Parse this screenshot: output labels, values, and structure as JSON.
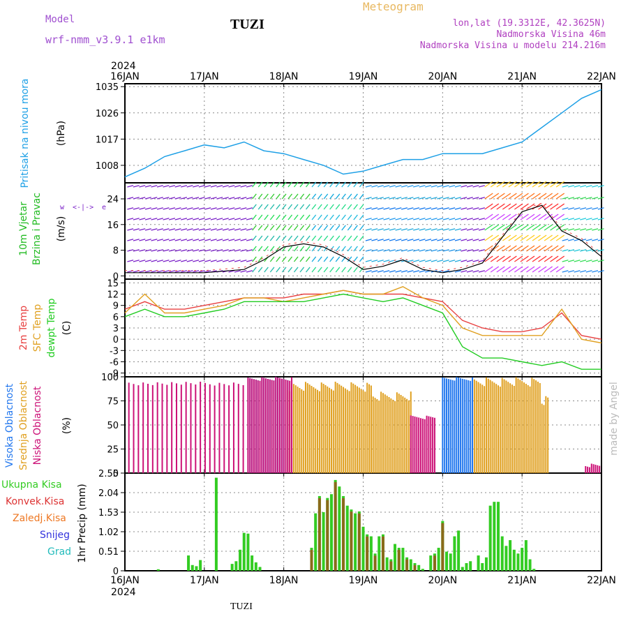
{
  "header": {
    "model_label": "Model",
    "model_name": "wrf-nmm_v3.9.1  e1km",
    "station": "TUZI",
    "title": "Meteogram",
    "lonlat": "lon,lat (19.3312E, 42.3625N)",
    "altitude": "Nadmorska Visina 46m",
    "model_altitude": "Nadmorska Visina u modelu 214.216m",
    "footer_station": "TUZI",
    "credit": "made by Angel"
  },
  "colors": {
    "pressure": "#1ea0e6",
    "wind_label": "#22bb22",
    "wind_arrows": "#7a1fc8",
    "temp2m": "#e84040",
    "sfc_temp": "#e0a020",
    "dewpoint": "#22cc22",
    "high_cloud": "#2277ee",
    "mid_cloud": "#e0a020",
    "low_cloud": "#cc1177",
    "total_precip": "#33cc22",
    "convective": "#dd3333",
    "frozen": "#ee7722",
    "snow": "#3333dd",
    "hail": "#22bbbb"
  },
  "time_axis": {
    "year": "2024",
    "ticks": [
      "16JAN",
      "17JAN",
      "18JAN",
      "19JAN",
      "20JAN",
      "21JAN",
      "22JAN"
    ]
  },
  "chart_data": [
    {
      "type": "line",
      "panel": "pressure",
      "ylabel": [
        "Pritisak na nivou mora",
        "(hPa)"
      ],
      "yticks": [
        1008,
        1017,
        1026,
        1035
      ],
      "ylim": [
        1002,
        1036
      ],
      "x_days": [
        0,
        0.25,
        0.5,
        0.75,
        1.0,
        1.25,
        1.5,
        1.75,
        2.0,
        2.25,
        2.5,
        2.75,
        3.0,
        3.25,
        3.5,
        3.75,
        4.0,
        4.25,
        4.5,
        4.75,
        5.0,
        5.25,
        5.5,
        5.75,
        6.0
      ],
      "values": [
        1004,
        1007,
        1011,
        1013,
        1015,
        1014,
        1016,
        1013,
        1012,
        1010,
        1008,
        1005,
        1006,
        1008,
        1010,
        1010,
        1012,
        1012,
        1012,
        1014,
        1016,
        1021,
        1026,
        1031,
        1034
      ]
    },
    {
      "type": "line",
      "panel": "wind",
      "ylabel": [
        "10m Vjetar",
        "Brzina i Pravac",
        "(m/s)"
      ],
      "yticks": [
        0,
        8,
        16,
        24
      ],
      "ylim": [
        -1,
        29
      ],
      "series": [
        {
          "x_days": [
            0,
            0.5,
            1.0,
            1.5,
            1.75,
            2.0,
            2.25,
            2.5,
            2.75,
            3.0,
            3.25,
            3.5,
            3.75,
            4.0,
            4.25,
            4.5,
            4.75,
            5.0,
            5.25,
            5.5,
            5.75,
            6.0
          ],
          "values": [
            1,
            1,
            1,
            2,
            5,
            9,
            10,
            9,
            6,
            2,
            3,
            5,
            2,
            1,
            2,
            4,
            12,
            20,
            22,
            14,
            11,
            6
          ]
        }
      ]
    },
    {
      "type": "line",
      "panel": "temperature",
      "ylabel": [
        "2m Temp",
        "SFC Temp",
        "dewpt Temp",
        "(C)"
      ],
      "yticks": [
        -9,
        -6,
        -3,
        0,
        3,
        6,
        9,
        12,
        15
      ],
      "ylim": [
        -10,
        16
      ],
      "x_days": [
        0,
        0.25,
        0.5,
        0.75,
        1.0,
        1.25,
        1.5,
        1.75,
        2.0,
        2.25,
        2.5,
        2.75,
        3.0,
        3.25,
        3.5,
        3.75,
        4.0,
        4.25,
        4.5,
        4.75,
        5.0,
        5.25,
        5.5,
        5.75,
        6.0
      ],
      "series": [
        {
          "name": "2m Temp",
          "values": [
            8,
            10,
            8,
            8,
            9,
            10,
            11,
            11,
            11,
            12,
            12,
            13,
            12,
            12,
            12,
            11,
            10,
            5,
            3,
            2,
            2,
            3,
            7,
            1,
            0
          ]
        },
        {
          "name": "SFC Temp",
          "values": [
            7,
            12,
            7,
            7,
            8,
            9,
            11,
            11,
            10,
            11,
            12,
            13,
            12,
            12,
            14,
            11,
            9,
            3,
            1,
            1,
            1,
            1,
            8,
            0,
            -1
          ]
        },
        {
          "name": "dewpt Temp",
          "values": [
            6,
            8,
            6,
            6,
            7,
            8,
            10,
            10,
            10,
            10,
            11,
            12,
            11,
            10,
            11,
            9,
            7,
            -2,
            -5,
            -5,
            -6,
            -7,
            -6,
            -8,
            -8
          ]
        }
      ]
    },
    {
      "type": "bar",
      "panel": "clouds",
      "ylabel": [
        "Visoka Oblacnost",
        "Srednja Oblacnost",
        "Niska Oblacnost",
        "(%)"
      ],
      "yticks": [
        0,
        25,
        50,
        75,
        100
      ],
      "ylim": [
        0,
        100
      ],
      "series": [
        {
          "name": "Visoka Oblacnost",
          "segments": [
            [
              1.55,
              2.05,
              100
            ],
            [
              4.0,
              4.4,
              100
            ]
          ]
        },
        {
          "name": "Srednja Oblacnost",
          "segments": [
            [
              2.05,
              3.1,
              95
            ],
            [
              3.1,
              3.6,
              85
            ],
            [
              4.4,
              5.25,
              100
            ],
            [
              5.25,
              5.35,
              80
            ]
          ]
        },
        {
          "name": "Niska Oblacnost",
          "segments": [
            [
              0.05,
              1.55,
              95
            ],
            [
              1.55,
              2.1,
              100
            ],
            [
              3.6,
              3.9,
              60
            ],
            [
              5.8,
              6.0,
              10
            ]
          ]
        }
      ]
    },
    {
      "type": "bar",
      "panel": "precipitation",
      "ylabel": [
        "1hr Precip (mm)"
      ],
      "yticks": [
        0,
        0.51,
        1.02,
        1.53,
        2.04,
        2.55
      ],
      "ylim": [
        0,
        2.55
      ],
      "legend": [
        "Ukupna Kisa",
        "Konvek.Kisa",
        "Zaledj.Kisa",
        "Snijeg",
        "Grad"
      ],
      "x_days": [
        0.42,
        0.8,
        0.85,
        0.9,
        0.95,
        1.15,
        1.35,
        1.4,
        1.45,
        1.5,
        1.55,
        1.6,
        1.65,
        1.7,
        2.35,
        2.4,
        2.45,
        2.5,
        2.55,
        2.6,
        2.65,
        2.7,
        2.75,
        2.8,
        2.85,
        2.9,
        2.95,
        3.0,
        3.05,
        3.1,
        3.15,
        3.2,
        3.25,
        3.3,
        3.35,
        3.4,
        3.45,
        3.5,
        3.55,
        3.6,
        3.65,
        3.7,
        3.75,
        3.85,
        3.9,
        3.95,
        4.0,
        4.05,
        4.1,
        4.15,
        4.2,
        4.25,
        4.3,
        4.35,
        4.45,
        4.5,
        4.55,
        4.6,
        4.65,
        4.7,
        4.75,
        4.8,
        4.85,
        4.9,
        4.95,
        5.0,
        5.05,
        5.1,
        5.15
      ],
      "values": [
        0.04,
        0.4,
        0.15,
        0.12,
        0.28,
        2.43,
        0.18,
        0.25,
        0.55,
        0.99,
        0.97,
        0.4,
        0.22,
        0.1,
        0.6,
        1.5,
        1.95,
        1.53,
        1.9,
        2.0,
        2.37,
        2.2,
        1.95,
        1.7,
        1.6,
        1.5,
        1.55,
        1.15,
        0.95,
        0.9,
        0.45,
        0.9,
        0.95,
        0.35,
        0.3,
        0.7,
        0.6,
        0.6,
        0.35,
        0.3,
        0.2,
        0.15,
        0.05,
        0.4,
        0.45,
        0.6,
        1.3,
        0.5,
        0.45,
        0.9,
        1.05,
        0.1,
        0.2,
        0.25,
        0.4,
        0.2,
        0.35,
        1.7,
        1.8,
        1.8,
        0.9,
        0.65,
        0.8,
        0.55,
        0.45,
        0.6,
        0.8,
        0.3,
        0.05
      ]
    }
  ]
}
